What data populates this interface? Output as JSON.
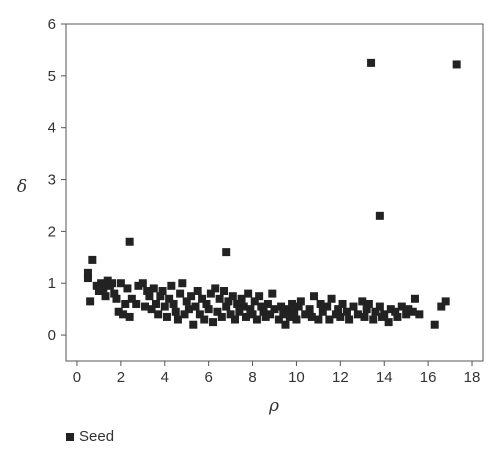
{
  "chart_data": {
    "type": "scatter",
    "xlabel": "ρ",
    "ylabel": "δ",
    "xlim": [
      -0.5,
      18.5
    ],
    "ylim": [
      -0.5,
      6
    ],
    "xticks": [
      0,
      2,
      4,
      6,
      8,
      10,
      12,
      14,
      16,
      18
    ],
    "yticks": [
      0,
      1,
      2,
      3,
      4,
      5,
      6
    ],
    "grid": false,
    "legend_position": "bottom-left",
    "marker_color": "#222222",
    "series": [
      {
        "name": "Seed",
        "x": [
          0.5,
          0.5,
          0.6,
          0.7,
          0.9,
          1.0,
          1.1,
          1.2,
          1.3,
          1.4,
          1.5,
          1.6,
          1.7,
          1.8,
          1.9,
          2.0,
          2.1,
          2.2,
          2.3,
          2.4,
          2.5,
          2.7,
          2.8,
          3.0,
          3.1,
          3.2,
          3.3,
          3.4,
          3.5,
          3.6,
          3.7,
          3.8,
          3.9,
          4.0,
          4.1,
          4.2,
          4.3,
          4.4,
          4.5,
          4.6,
          4.7,
          4.8,
          4.9,
          5.0,
          5.1,
          5.2,
          5.3,
          5.4,
          5.5,
          5.6,
          5.7,
          5.8,
          5.9,
          6.0,
          6.1,
          6.2,
          6.3,
          6.4,
          6.5,
          6.6,
          6.7,
          6.8,
          6.9,
          7.0,
          7.1,
          7.2,
          7.3,
          7.4,
          7.5,
          7.6,
          7.7,
          7.8,
          7.9,
          8.0,
          8.1,
          8.2,
          8.3,
          8.4,
          8.5,
          8.6,
          8.7,
          8.8,
          8.9,
          9.0,
          9.2,
          9.3,
          9.4,
          9.5,
          9.6,
          9.7,
          9.8,
          9.9,
          10.0,
          10.1,
          10.2,
          10.4,
          10.6,
          10.7,
          10.8,
          11.0,
          11.1,
          11.2,
          11.4,
          11.5,
          11.6,
          11.8,
          11.9,
          12.0,
          12.1,
          12.3,
          12.4,
          12.6,
          12.8,
          13.0,
          13.1,
          13.2,
          13.3,
          13.5,
          13.6,
          13.8,
          13.9,
          14.0,
          14.2,
          14.3,
          14.5,
          14.6,
          14.8,
          15.0,
          15.1,
          15.3,
          15.4,
          15.6,
          16.3,
          16.6,
          16.8,
          13.4,
          17.3,
          13.8,
          6.8,
          2.4
        ],
        "y": [
          1.2,
          1.1,
          0.65,
          1.45,
          0.95,
          0.85,
          1.0,
          0.9,
          0.75,
          1.05,
          0.95,
          1.0,
          0.8,
          0.7,
          0.45,
          1.0,
          0.4,
          0.6,
          0.9,
          0.35,
          0.7,
          0.6,
          0.95,
          1.0,
          0.55,
          0.85,
          0.75,
          0.5,
          0.9,
          0.6,
          0.4,
          0.75,
          0.85,
          0.55,
          0.35,
          0.7,
          0.95,
          0.6,
          0.45,
          0.3,
          0.8,
          1.0,
          0.4,
          0.65,
          0.5,
          0.75,
          0.2,
          0.55,
          0.85,
          0.4,
          0.7,
          0.3,
          0.6,
          0.5,
          0.8,
          0.25,
          0.9,
          0.45,
          0.7,
          0.35,
          0.85,
          0.55,
          0.65,
          0.4,
          0.75,
          0.3,
          0.6,
          0.45,
          0.7,
          0.55,
          0.35,
          0.8,
          0.5,
          0.4,
          0.65,
          0.3,
          0.75,
          0.55,
          0.45,
          0.35,
          0.6,
          0.4,
          0.8,
          0.5,
          0.3,
          0.55,
          0.4,
          0.2,
          0.5,
          0.35,
          0.6,
          0.45,
          0.3,
          0.55,
          0.65,
          0.4,
          0.5,
          0.35,
          0.75,
          0.3,
          0.6,
          0.45,
          0.55,
          0.3,
          0.7,
          0.4,
          0.5,
          0.35,
          0.6,
          0.45,
          0.3,
          0.55,
          0.4,
          0.65,
          0.35,
          0.5,
          0.6,
          0.3,
          0.45,
          0.55,
          0.35,
          0.4,
          0.25,
          0.5,
          0.45,
          0.35,
          0.55,
          0.4,
          0.5,
          0.45,
          0.7,
          0.4,
          0.2,
          0.55,
          0.65,
          5.25,
          5.22,
          2.3,
          1.6,
          1.8
        ]
      }
    ]
  }
}
